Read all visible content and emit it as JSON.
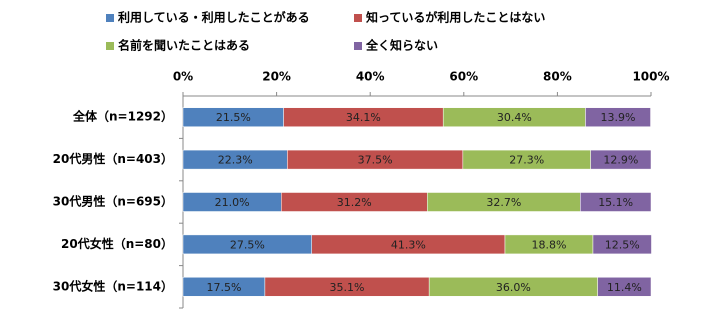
{
  "chart_data": {
    "type": "stacked_bar_horizontal",
    "categories": [
      "全体（n=1292）",
      "20代男性（n=403）",
      "30代男性（n=695）",
      "20代女性（n=80）",
      "30代女性（n=114）"
    ],
    "series": [
      {
        "name": "利用している・利用したことがある",
        "color": "#4f81bd",
        "values": [
          21.5,
          22.3,
          21.0,
          27.5,
          17.5
        ],
        "value_labels": [
          "21.5%",
          "22.3%",
          "21.0%",
          "27.5%",
          "17.5%"
        ]
      },
      {
        "name": "知っているが利用したことはない",
        "color": "#c0504d",
        "values": [
          34.1,
          37.5,
          31.2,
          41.3,
          35.1
        ],
        "value_labels": [
          "34.1%",
          "37.5%",
          "31.2%",
          "41.3%",
          "35.1%"
        ]
      },
      {
        "name": "名前を聞いたことはある",
        "color": "#9bbb59",
        "values": [
          30.4,
          27.3,
          32.7,
          18.8,
          36.0
        ],
        "value_labels": [
          "30.4%",
          "27.3%",
          "32.7%",
          "18.8%",
          "36.0%"
        ]
      },
      {
        "name": "全く知らない",
        "color": "#8064a2",
        "values": [
          13.9,
          12.9,
          15.1,
          12.5,
          11.4
        ],
        "value_labels": [
          "13.9%",
          "12.9%",
          "15.1%",
          "12.5%",
          "11.4%"
        ]
      }
    ],
    "xlim": [
      0,
      100
    ],
    "xticks": [
      {
        "value": 0,
        "label": "0%"
      },
      {
        "value": 20,
        "label": "20%"
      },
      {
        "value": 40,
        "label": "40%"
      },
      {
        "value": 60,
        "label": "60%"
      },
      {
        "value": 80,
        "label": "80%"
      },
      {
        "value": 100,
        "label": "100%"
      }
    ]
  }
}
